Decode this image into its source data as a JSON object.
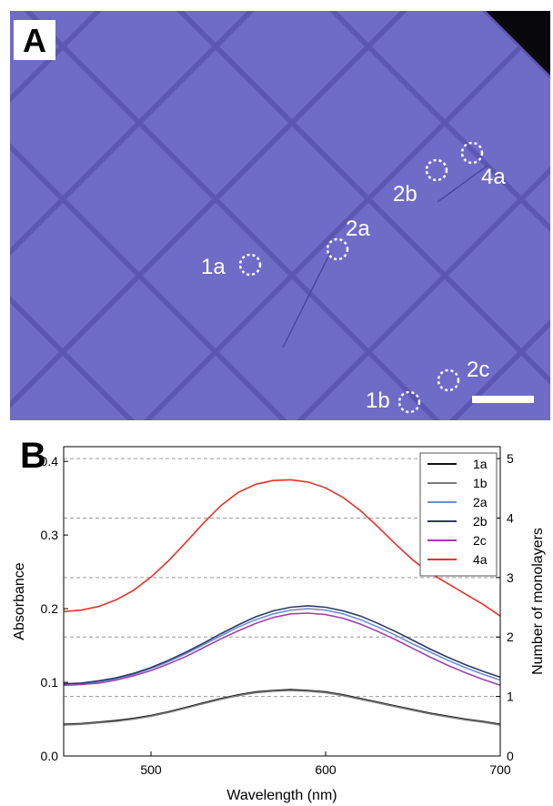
{
  "panel_a": {
    "label": "A",
    "spots": [
      "1a",
      "1b",
      "2a",
      "2b",
      "2c",
      "4a"
    ],
    "colors": {
      "background": "#08080c",
      "flake": "#6f6cc7",
      "flake_dark": "#5c58b4",
      "marker": "#ffffff"
    }
  },
  "chart_data": {
    "type": "line",
    "panel_label": "B",
    "title": "",
    "xlabel": "Wavelength (nm)",
    "ylabel": "Absorbance",
    "y2label": "Number of monolayers",
    "xlim": [
      450,
      700
    ],
    "ylim": [
      0.0,
      0.42
    ],
    "y2lim": [
      0,
      5.2
    ],
    "x_ticks": [
      500,
      600,
      700
    ],
    "y_ticks": [
      "0.0",
      "0.1",
      "0.2",
      "0.3",
      "0.4"
    ],
    "y2_ticks": [
      "0",
      "1",
      "2",
      "3",
      "4",
      "5"
    ],
    "monolayer_gridlines": [
      1,
      2,
      3,
      4,
      5
    ],
    "legend_position": "top-right",
    "x": [
      450,
      460,
      470,
      480,
      490,
      500,
      510,
      520,
      530,
      540,
      550,
      560,
      570,
      580,
      590,
      600,
      610,
      620,
      630,
      640,
      650,
      660,
      670,
      680,
      690,
      700
    ],
    "series": [
      {
        "name": "1a",
        "color": "#111111",
        "values": [
          0.043,
          0.044,
          0.046,
          0.048,
          0.051,
          0.055,
          0.06,
          0.066,
          0.072,
          0.078,
          0.083,
          0.087,
          0.089,
          0.09,
          0.089,
          0.087,
          0.083,
          0.078,
          0.073,
          0.068,
          0.063,
          0.058,
          0.054,
          0.05,
          0.047,
          0.043
        ]
      },
      {
        "name": "1b",
        "color": "#7a7a7a",
        "values": [
          0.042,
          0.043,
          0.045,
          0.047,
          0.05,
          0.054,
          0.059,
          0.065,
          0.071,
          0.077,
          0.082,
          0.086,
          0.088,
          0.089,
          0.088,
          0.086,
          0.082,
          0.077,
          0.072,
          0.067,
          0.062,
          0.057,
          0.053,
          0.049,
          0.046,
          0.042
        ]
      },
      {
        "name": "2a",
        "color": "#6c8fd0",
        "values": [
          0.097,
          0.098,
          0.101,
          0.105,
          0.111,
          0.119,
          0.128,
          0.139,
          0.151,
          0.163,
          0.175,
          0.185,
          0.193,
          0.198,
          0.2,
          0.198,
          0.193,
          0.185,
          0.175,
          0.164,
          0.152,
          0.141,
          0.13,
          0.12,
          0.111,
          0.103
        ]
      },
      {
        "name": "2b",
        "color": "#2b3a6e",
        "values": [
          0.098,
          0.099,
          0.102,
          0.106,
          0.112,
          0.12,
          0.13,
          0.141,
          0.153,
          0.166,
          0.178,
          0.189,
          0.197,
          0.202,
          0.204,
          0.202,
          0.197,
          0.19,
          0.18,
          0.169,
          0.157,
          0.145,
          0.134,
          0.124,
          0.115,
          0.107
        ]
      },
      {
        "name": "2c",
        "color": "#a040b0",
        "values": [
          0.096,
          0.097,
          0.099,
          0.103,
          0.109,
          0.116,
          0.125,
          0.135,
          0.147,
          0.159,
          0.17,
          0.18,
          0.188,
          0.193,
          0.194,
          0.192,
          0.187,
          0.179,
          0.169,
          0.158,
          0.146,
          0.134,
          0.123,
          0.113,
          0.104,
          0.096
        ]
      },
      {
        "name": "4a",
        "color": "#e8312b",
        "values": [
          0.196,
          0.198,
          0.203,
          0.212,
          0.225,
          0.243,
          0.265,
          0.29,
          0.316,
          0.34,
          0.358,
          0.369,
          0.374,
          0.375,
          0.372,
          0.364,
          0.351,
          0.333,
          0.311,
          0.288,
          0.266,
          0.248,
          0.234,
          0.22,
          0.206,
          0.19
        ]
      }
    ]
  }
}
